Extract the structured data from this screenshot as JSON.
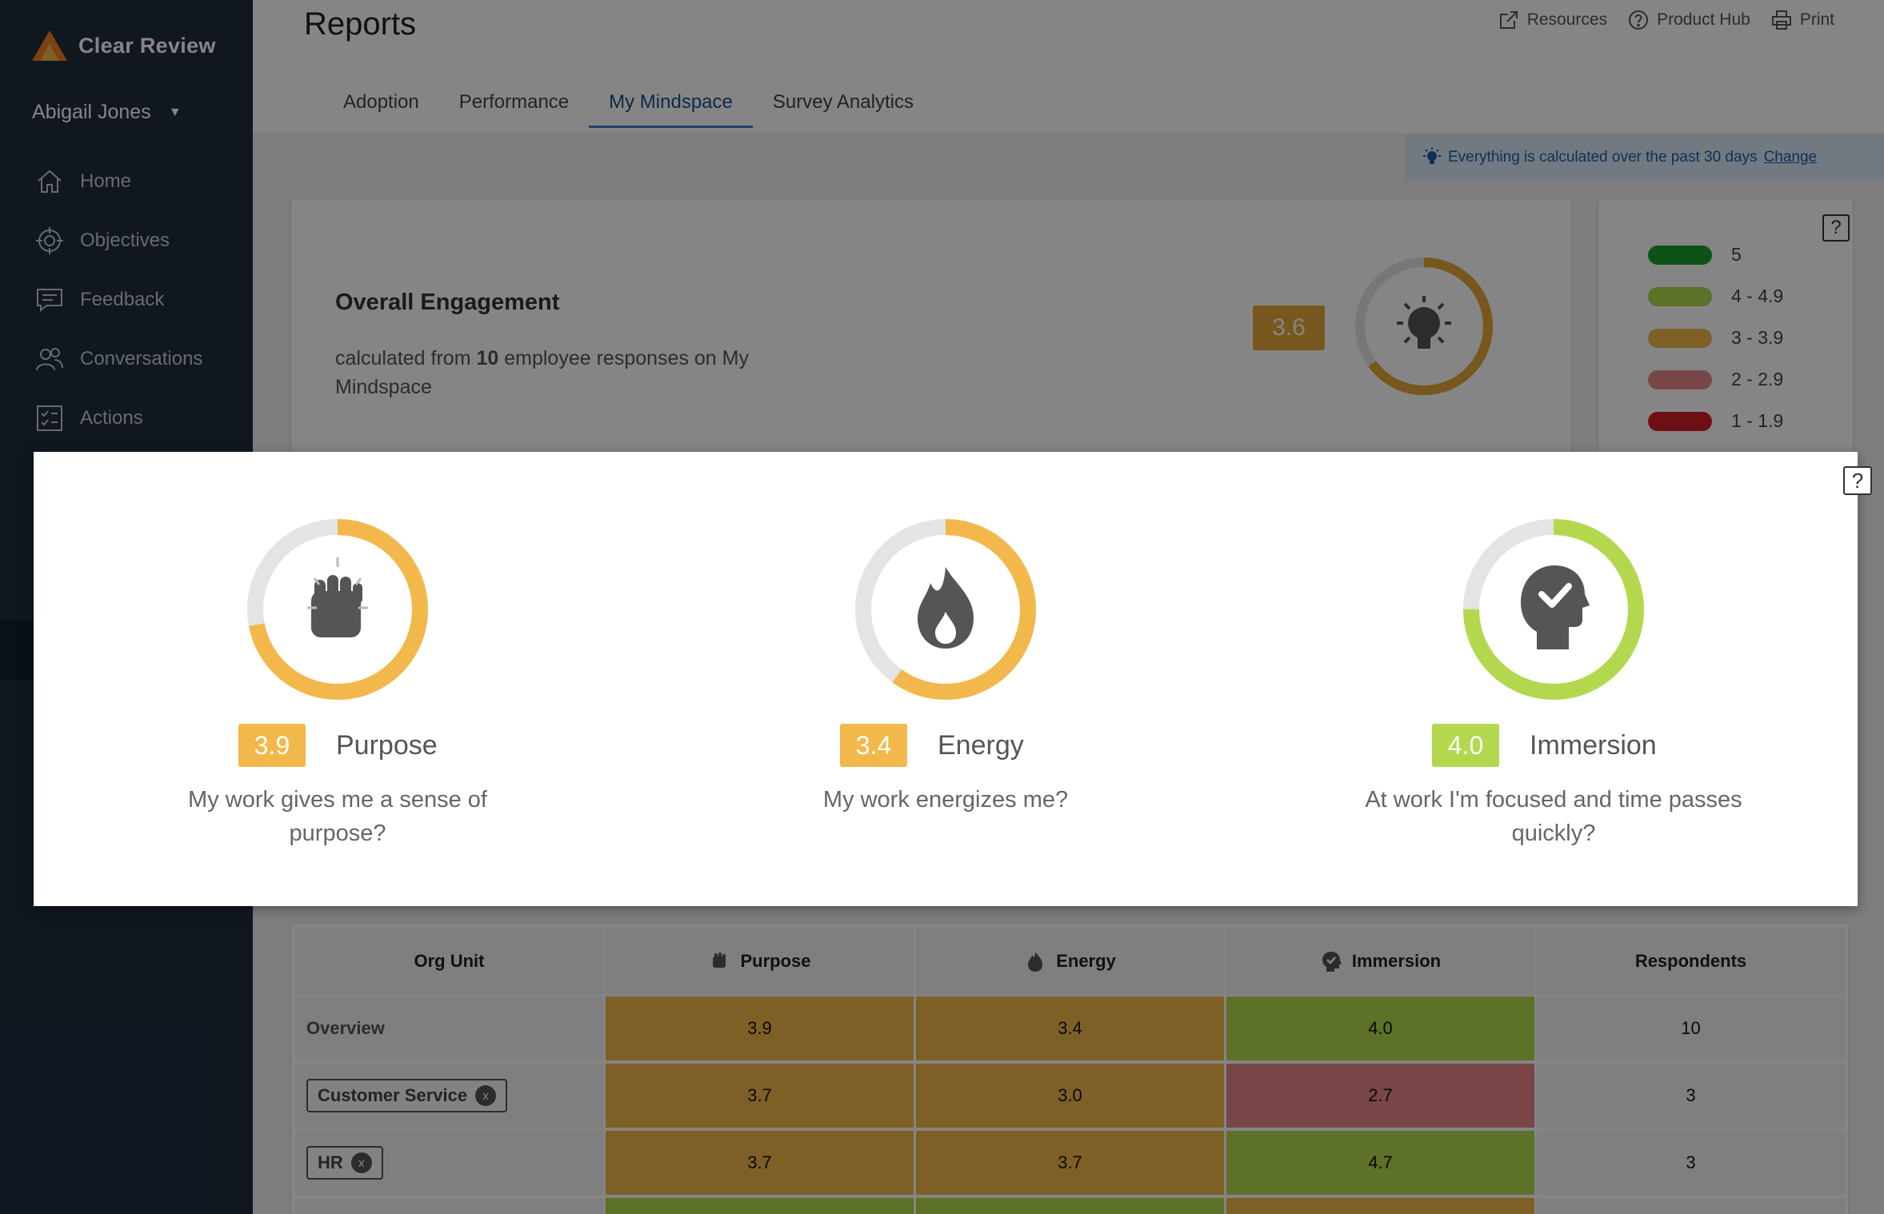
{
  "app": {
    "name": "Clear Review"
  },
  "user": {
    "name": "Abigail Jones",
    "caret": "▼"
  },
  "nav": [
    {
      "label": "Home",
      "icon": "home-icon"
    },
    {
      "label": "Objectives",
      "icon": "target-icon"
    },
    {
      "label": "Feedback",
      "icon": "feedback-icon"
    },
    {
      "label": "Conversations",
      "icon": "conversations-icon"
    },
    {
      "label": "Actions",
      "icon": "actions-icon"
    }
  ],
  "page": {
    "title": "Reports"
  },
  "top_links": [
    {
      "label": "Resources",
      "icon": "external-link-icon"
    },
    {
      "label": "Product Hub",
      "icon": "question-circle-icon"
    },
    {
      "label": "Print",
      "icon": "printer-icon"
    }
  ],
  "tabs": [
    {
      "label": "Adoption",
      "active": false
    },
    {
      "label": "Performance",
      "active": false
    },
    {
      "label": "My Mindspace",
      "active": true
    },
    {
      "label": "Survey Analytics",
      "active": false
    }
  ],
  "banner": {
    "text": "Everything is calculated over the past 30 days",
    "link": "Change"
  },
  "engagement": {
    "title": "Overall Engagement",
    "sub_prefix": "calculated from",
    "count": "10",
    "sub_suffix": "employee responses on My Mindspace",
    "score": "3.6",
    "score_fraction": 0.65,
    "color": "#e6a83a"
  },
  "legend": [
    {
      "label": "5",
      "color": "#1e9e2e"
    },
    {
      "label": "4 - 4.9",
      "color": "#b3d84e"
    },
    {
      "label": "3 - 3.9",
      "color": "#f2b84b"
    },
    {
      "label": "2 - 2.9",
      "color": "#e8868a"
    },
    {
      "label": "1 - 1.9",
      "color": "#d11f26"
    }
  ],
  "help": "?",
  "modal": {
    "metrics": [
      {
        "score": "3.9",
        "name": "Purpose",
        "question": "My work gives me a sense of purpose?",
        "fraction": 0.72,
        "color": "#f2b84b",
        "icon": "fist-icon"
      },
      {
        "score": "3.4",
        "name": "Energy",
        "question": "My work energizes me?",
        "fraction": 0.6,
        "color": "#f2b84b",
        "icon": "flame-icon"
      },
      {
        "score": "4.0",
        "name": "Immersion",
        "question": "At work I'm focused and time passes quickly?",
        "fraction": 0.75,
        "color": "#b3d84e",
        "icon": "head-check-icon"
      }
    ]
  },
  "table": {
    "headers": [
      "Org Unit",
      "Purpose",
      "Energy",
      "Immersion",
      "Respondents"
    ],
    "rows": [
      {
        "org": "Overview",
        "chip": false,
        "purpose": "3.9",
        "energy": "3.4",
        "immersion": "4.0",
        "respondents": "10",
        "colors": [
          "#f2b84b",
          "#f2b84b",
          "#b3d84e"
        ]
      },
      {
        "org": "Customer Service",
        "chip": true,
        "purpose": "3.7",
        "energy": "3.0",
        "immersion": "2.7",
        "respondents": "3",
        "colors": [
          "#f2b84b",
          "#f2b84b",
          "#e8868a"
        ]
      },
      {
        "org": "HR",
        "chip": true,
        "purpose": "3.7",
        "energy": "3.7",
        "immersion": "4.7",
        "respondents": "3",
        "colors": [
          "#f2b84b",
          "#f2b84b",
          "#b3d84e"
        ]
      }
    ],
    "chip_close": "x"
  }
}
